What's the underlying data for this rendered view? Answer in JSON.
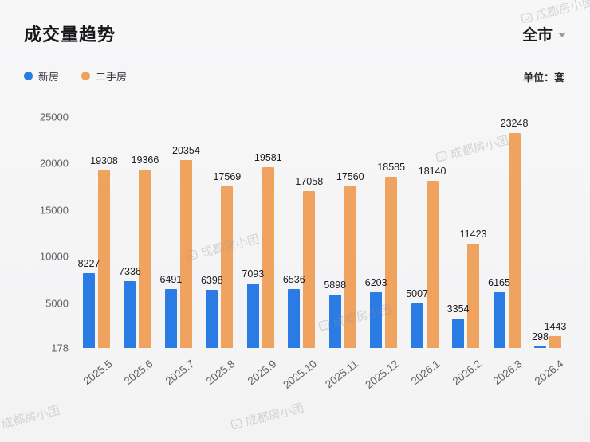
{
  "header": {
    "title": "成交量趋势",
    "scope": "全市",
    "unit_label": "单位：套"
  },
  "legend": [
    {
      "label": "新房",
      "color": "#2B7BE4"
    },
    {
      "label": "二手房",
      "color": "#F0A25F"
    }
  ],
  "watermark": {
    "text": "成都房小团",
    "logo": "rounded-square-face-logo"
  },
  "chart_data": {
    "type": "bar",
    "title": "成交量趋势",
    "categories": [
      "2025.5",
      "2025.6",
      "2025.7",
      "2025.8",
      "2025.9",
      "2025.10",
      "2025.11",
      "2025.12",
      "2026.1",
      "2026.2",
      "2026.3",
      "2026.4"
    ],
    "series": [
      {
        "name": "新房",
        "color": "#2B7BE4",
        "values": [
          8227,
          7336,
          6491,
          6398,
          7093,
          6536,
          5898,
          6203,
          5007,
          3354,
          6165,
          298
        ]
      },
      {
        "name": "二手房",
        "color": "#F0A25F",
        "values": [
          19308,
          19366,
          20354,
          17569,
          19581,
          17058,
          17560,
          18585,
          18140,
          11423,
          23248,
          1443
        ]
      }
    ],
    "xlabel": "",
    "ylabel": "单位：套",
    "y_ticks": [
      25000,
      20000,
      15000,
      10000,
      5000,
      178
    ],
    "ylim": [
      178,
      25000
    ],
    "grid": false,
    "legend_position": "top-left",
    "data_labels": true
  }
}
